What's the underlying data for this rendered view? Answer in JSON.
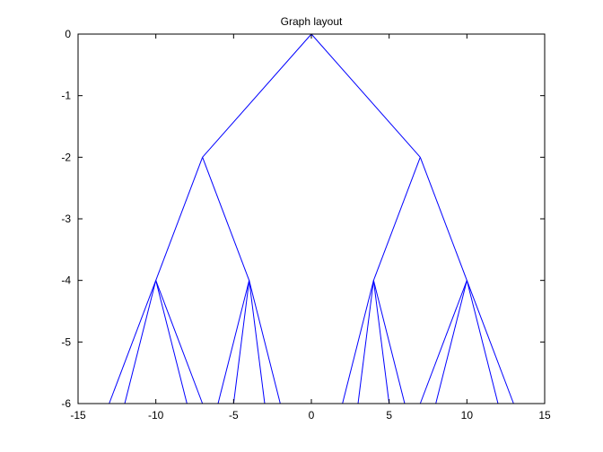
{
  "chart_data": {
    "type": "line",
    "title": "Graph layout",
    "xlabel": "",
    "ylabel": "",
    "xlim": [
      -15,
      15
    ],
    "ylim": [
      -6,
      0
    ],
    "xticks": [
      -15,
      -10,
      -5,
      0,
      5,
      10,
      15
    ],
    "yticks": [
      0,
      -1,
      -2,
      -3,
      -4,
      -5,
      -6
    ],
    "grid": false,
    "line_color": "#0000ff",
    "nodes": [
      {
        "id": "root",
        "x": 0,
        "y": 0
      },
      {
        "id": "L",
        "x": -7,
        "y": -2
      },
      {
        "id": "R",
        "x": 7,
        "y": -2
      },
      {
        "id": "LL",
        "x": -10,
        "y": -4
      },
      {
        "id": "LR",
        "x": -4,
        "y": -4
      },
      {
        "id": "RL",
        "x": 4,
        "y": -4
      },
      {
        "id": "RR",
        "x": 10,
        "y": -4
      },
      {
        "id": "LL1",
        "x": -13,
        "y": -6
      },
      {
        "id": "LL2",
        "x": -12,
        "y": -6
      },
      {
        "id": "LL3",
        "x": -8,
        "y": -6
      },
      {
        "id": "LL4",
        "x": -7,
        "y": -6
      },
      {
        "id": "LR1",
        "x": -6,
        "y": -6
      },
      {
        "id": "LR2",
        "x": -5,
        "y": -6
      },
      {
        "id": "LR3",
        "x": -3,
        "y": -6
      },
      {
        "id": "LR4",
        "x": -2,
        "y": -6
      },
      {
        "id": "RL1",
        "x": 2,
        "y": -6
      },
      {
        "id": "RL2",
        "x": 3,
        "y": -6
      },
      {
        "id": "RL3",
        "x": 5,
        "y": -6
      },
      {
        "id": "RL4",
        "x": 6,
        "y": -6
      },
      {
        "id": "RR1",
        "x": 7,
        "y": -6
      },
      {
        "id": "RR2",
        "x": 8,
        "y": -6
      },
      {
        "id": "RR3",
        "x": 12,
        "y": -6
      },
      {
        "id": "RR4",
        "x": 13,
        "y": -6
      }
    ],
    "edges": [
      [
        "root",
        "L"
      ],
      [
        "root",
        "R"
      ],
      [
        "L",
        "LL"
      ],
      [
        "L",
        "LR"
      ],
      [
        "R",
        "RL"
      ],
      [
        "R",
        "RR"
      ],
      [
        "LL",
        "LL1"
      ],
      [
        "LL",
        "LL2"
      ],
      [
        "LL",
        "LL3"
      ],
      [
        "LL",
        "LL4"
      ],
      [
        "LR",
        "LR1"
      ],
      [
        "LR",
        "LR2"
      ],
      [
        "LR",
        "LR3"
      ],
      [
        "LR",
        "LR4"
      ],
      [
        "RL",
        "RL1"
      ],
      [
        "RL",
        "RL2"
      ],
      [
        "RL",
        "RL3"
      ],
      [
        "RL",
        "RL4"
      ],
      [
        "RR",
        "RR1"
      ],
      [
        "RR",
        "RR2"
      ],
      [
        "RR",
        "RR3"
      ],
      [
        "RR",
        "RR4"
      ]
    ]
  }
}
